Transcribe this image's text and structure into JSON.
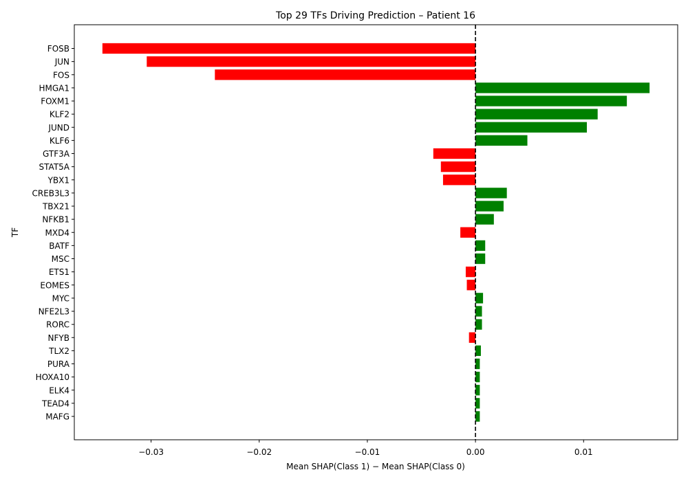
{
  "chart_data": {
    "type": "bar",
    "orientation": "horizontal",
    "title": "Top 29 TFs Driving Prediction – Patient 16",
    "xlabel": "Mean SHAP(Class 1) − Mean SHAP(Class 0)",
    "ylabel": "TF",
    "xlim": [
      -0.0371,
      0.0187
    ],
    "xticks": [
      -0.03,
      -0.02,
      -0.01,
      0.0,
      0.01
    ],
    "xtick_labels": [
      "−0.03",
      "−0.02",
      "−0.01",
      "0.00",
      "0.01"
    ],
    "reference_line": 0.0,
    "grid": false,
    "colors": {
      "positive": "#008000",
      "negative": "#ff0000"
    },
    "categories": [
      "FOSB",
      "JUN",
      "FOS",
      "HMGA1",
      "FOXM1",
      "KLF2",
      "JUND",
      "KLF6",
      "GTF3A",
      "STAT5A",
      "YBX1",
      "CREB3L3",
      "TBX21",
      "NFKB1",
      "MXD4",
      "BATF",
      "MSC",
      "ETS1",
      "EOMES",
      "MYC",
      "NFE2L3",
      "RORC",
      "NFYB",
      "TLX2",
      "PURA",
      "HOXA10",
      "ELK4",
      "TEAD4",
      "MAFG"
    ],
    "values": [
      -0.0345,
      -0.0304,
      -0.0241,
      0.0161,
      0.014,
      0.0113,
      0.0103,
      0.0048,
      -0.0039,
      -0.0032,
      -0.003,
      0.0029,
      0.0026,
      0.0017,
      -0.0014,
      0.0009,
      0.0009,
      -0.0009,
      -0.0008,
      0.0007,
      0.0006,
      0.0006,
      -0.0006,
      0.0005,
      0.0004,
      0.0004,
      0.0004,
      0.0004,
      0.0004
    ]
  }
}
